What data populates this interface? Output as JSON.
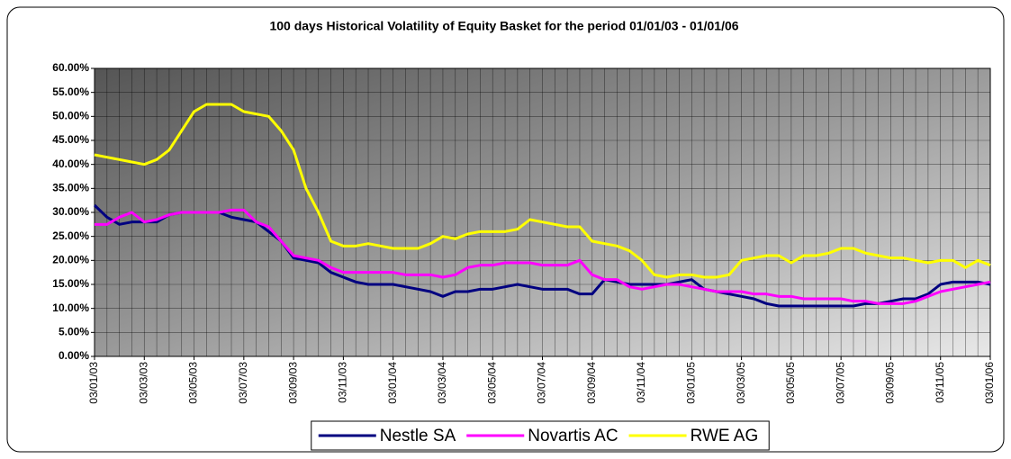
{
  "chart_data": {
    "type": "line",
    "title": "100 days Historical Volatility of Equity Basket for the period 01/01/03 - 01/01/06",
    "categories": [
      "03/01/03",
      null,
      null,
      null,
      "03/03/03",
      null,
      null,
      null,
      "03/05/03",
      null,
      null,
      null,
      "03/07/03",
      null,
      null,
      null,
      "03/09/03",
      null,
      null,
      null,
      "03/11/03",
      null,
      null,
      null,
      "03/01/04",
      null,
      null,
      null,
      "03/03/04",
      null,
      null,
      null,
      "03/05/04",
      null,
      null,
      null,
      "03/07/04",
      null,
      null,
      null,
      "03/09/04",
      null,
      null,
      null,
      "03/11/04",
      null,
      null,
      null,
      "03/01/05",
      null,
      null,
      null,
      "03/03/05",
      null,
      null,
      null,
      "03/05/05",
      null,
      null,
      null,
      "03/07/05",
      null,
      null,
      null,
      "03/09/05",
      null,
      null,
      null,
      "03/11/05",
      null,
      null,
      null,
      "03/01/06"
    ],
    "series": [
      {
        "name": "Nestle SA",
        "color": "#000080",
        "values": [
          31.5,
          29,
          27.5,
          28,
          28,
          28,
          29.5,
          30,
          30,
          30,
          30,
          29,
          28.5,
          28,
          26,
          24,
          20.5,
          20,
          19.5,
          17.5,
          16.5,
          15.5,
          15,
          15,
          15,
          14.5,
          14,
          13.5,
          12.5,
          13.5,
          13.5,
          14,
          14,
          14.5,
          15,
          14.5,
          14,
          14,
          14,
          13,
          13,
          16,
          15.5,
          15,
          15,
          15,
          15,
          15.5,
          16,
          14,
          13.5,
          13,
          12.5,
          12,
          11,
          10.5,
          10.5,
          10.5,
          10.5,
          10.5,
          10.5,
          10.5,
          11,
          11,
          11.5,
          12,
          12,
          13,
          15,
          15.5,
          15.5,
          15.5,
          15
        ]
      },
      {
        "name": "Novartis AC",
        "color": "#ff00ff",
        "values": [
          27.5,
          27.5,
          29,
          30,
          28,
          28.5,
          29.5,
          30,
          30,
          30,
          30,
          30.5,
          30.5,
          28,
          27,
          24,
          21,
          20.5,
          20,
          18.5,
          17.5,
          17.5,
          17.5,
          17.5,
          17.5,
          17,
          17,
          17,
          16.5,
          17,
          18.5,
          19,
          19,
          19.5,
          19.5,
          19.5,
          19,
          19,
          19,
          20,
          17,
          16,
          16,
          14.5,
          14,
          14.5,
          15,
          15,
          14.5,
          14,
          13.5,
          13.5,
          13.5,
          13,
          13,
          12.5,
          12.5,
          12,
          12,
          12,
          12,
          11.5,
          11.5,
          11,
          11,
          11,
          11.5,
          12.5,
          13.5,
          14,
          14.5,
          15,
          15.5
        ]
      },
      {
        "name": "RWE AG",
        "color": "#ffff00",
        "values": [
          42,
          41.5,
          41,
          40.5,
          40,
          41,
          43,
          47,
          51,
          52.5,
          52.5,
          52.5,
          51,
          50.5,
          50,
          47,
          43,
          35,
          30,
          24,
          23,
          23,
          23.5,
          23,
          22.5,
          22.5,
          22.5,
          23.5,
          25,
          24.5,
          25.5,
          26,
          26,
          26,
          26.5,
          28.5,
          28,
          27.5,
          27,
          27,
          24,
          23.5,
          23,
          22,
          20,
          17,
          16.5,
          17,
          17,
          16.5,
          16.5,
          17,
          20,
          20.5,
          21,
          21,
          19.5,
          21,
          21,
          21.5,
          22.5,
          22.5,
          21.5,
          21,
          20.5,
          20.5,
          20,
          19.5,
          20,
          20,
          18.5,
          20,
          19
        ]
      }
    ],
    "ylim": [
      0,
      60
    ],
    "yticks": [
      {
        "value": 0,
        "label": "0.00%"
      },
      {
        "value": 5,
        "label": "5.00%"
      },
      {
        "value": 10,
        "label": "10.00%"
      },
      {
        "value": 15,
        "label": "15.00%"
      },
      {
        "value": 20,
        "label": "20.00%"
      },
      {
        "value": 25,
        "label": "25.00%"
      },
      {
        "value": 30,
        "label": "30.00%"
      },
      {
        "value": 35,
        "label": "35.00%"
      },
      {
        "value": 40,
        "label": "40.00%"
      },
      {
        "value": 45,
        "label": "45.00%"
      },
      {
        "value": 50,
        "label": "50.00%"
      },
      {
        "value": 55,
        "label": "55.00%"
      },
      {
        "value": 60,
        "label": "60.00%"
      }
    ],
    "grid": true,
    "legend": "bottom"
  }
}
